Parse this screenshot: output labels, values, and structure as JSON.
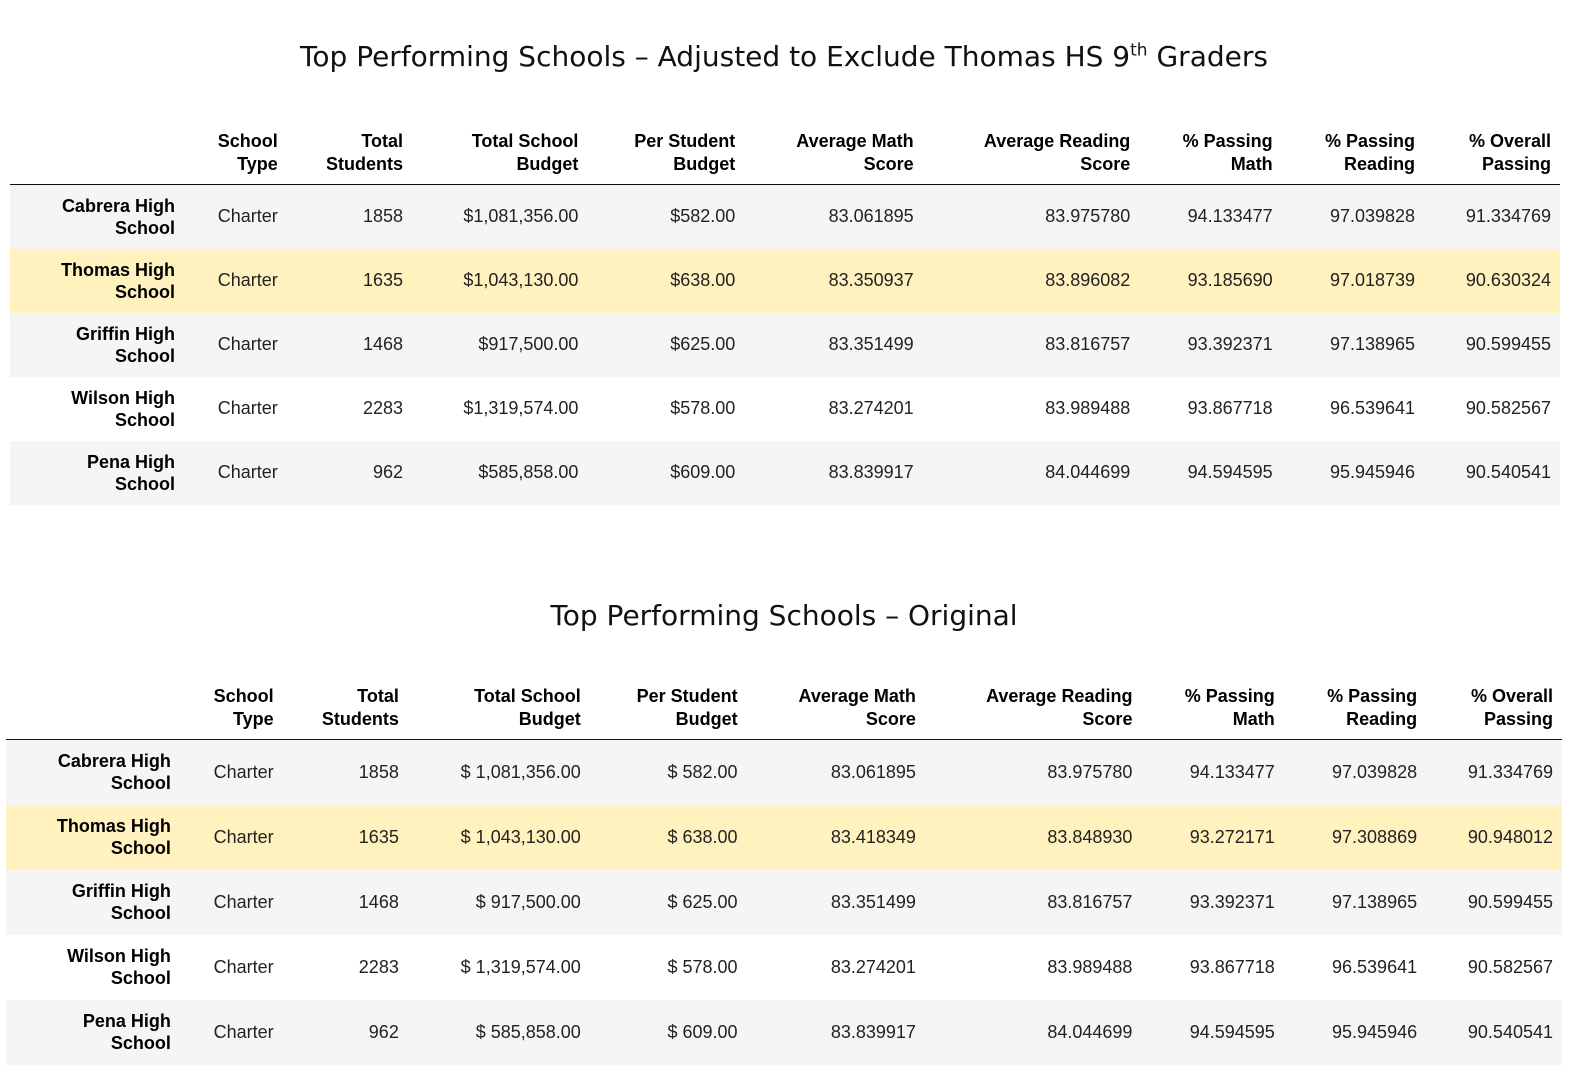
{
  "sections": [
    {
      "title_main": "Top Performing Schools – Adjusted to Exclude Thomas HS 9",
      "title_sup": "th",
      "title_tail": " Graders",
      "columns": [
        {
          "line1": "",
          "line2": ""
        },
        {
          "line1": "School",
          "line2": "Type"
        },
        {
          "line1": "Total",
          "line2": "Students"
        },
        {
          "line1": "Total School",
          "line2": "Budget"
        },
        {
          "line1": "Per Student",
          "line2": "Budget"
        },
        {
          "line1": "Average Math",
          "line2": "Score"
        },
        {
          "line1": "Average Reading",
          "line2": "Score"
        },
        {
          "line1": "% Passing",
          "line2": "Math"
        },
        {
          "line1": "% Passing",
          "line2": "Reading"
        },
        {
          "line1": "% Overall",
          "line2": "Passing"
        }
      ],
      "rows": [
        {
          "name1": "Cabrera High",
          "name2": "School",
          "type": "Charter",
          "students": "1858",
          "total_budget": "$1,081,356.00",
          "per_student": "$582.00",
          "avg_math": "83.061895",
          "avg_reading": "83.975780",
          "pct_math": "94.133477",
          "pct_reading": "97.039828",
          "pct_overall": "91.334769"
        },
        {
          "name1": "Thomas High",
          "name2": "School",
          "type": "Charter",
          "students": "1635",
          "total_budget": "$1,043,130.00",
          "per_student": "$638.00",
          "avg_math": "83.350937",
          "avg_reading": "83.896082",
          "pct_math": "93.185690",
          "pct_reading": "97.018739",
          "pct_overall": "90.630324"
        },
        {
          "name1": "Griffin High",
          "name2": "School",
          "type": "Charter",
          "students": "1468",
          "total_budget": "$917,500.00",
          "per_student": "$625.00",
          "avg_math": "83.351499",
          "avg_reading": "83.816757",
          "pct_math": "93.392371",
          "pct_reading": "97.138965",
          "pct_overall": "90.599455"
        },
        {
          "name1": "Wilson High",
          "name2": "School",
          "type": "Charter",
          "students": "2283",
          "total_budget": "$1,319,574.00",
          "per_student": "$578.00",
          "avg_math": "83.274201",
          "avg_reading": "83.989488",
          "pct_math": "93.867718",
          "pct_reading": "96.539641",
          "pct_overall": "90.582567"
        },
        {
          "name1": "Pena High",
          "name2": "School",
          "type": "Charter",
          "students": "962",
          "total_budget": "$585,858.00",
          "per_student": "$609.00",
          "avg_math": "83.839917",
          "avg_reading": "84.044699",
          "pct_math": "94.594595",
          "pct_reading": "95.945946",
          "pct_overall": "90.540541"
        }
      ]
    },
    {
      "title_main": "Top Performing Schools – Original",
      "title_sup": "",
      "title_tail": "",
      "columns": [
        {
          "line1": "",
          "line2": ""
        },
        {
          "line1": "School",
          "line2": "Type"
        },
        {
          "line1": "Total",
          "line2": "Students"
        },
        {
          "line1": "Total School",
          "line2": "Budget"
        },
        {
          "line1": "Per Student",
          "line2": "Budget"
        },
        {
          "line1": "Average Math",
          "line2": "Score"
        },
        {
          "line1": "Average Reading",
          "line2": "Score"
        },
        {
          "line1": "% Passing",
          "line2": "Math"
        },
        {
          "line1": "% Passing",
          "line2": "Reading"
        },
        {
          "line1": "% Overall",
          "line2": "Passing"
        }
      ],
      "rows": [
        {
          "name1": "Cabrera High",
          "name2": "School",
          "type": "Charter",
          "students": "1858",
          "total_budget": "$ 1,081,356.00",
          "per_student": "$ 582.00",
          "avg_math": "83.061895",
          "avg_reading": "83.975780",
          "pct_math": "94.133477",
          "pct_reading": "97.039828",
          "pct_overall": "91.334769"
        },
        {
          "name1": "Thomas High",
          "name2": "School",
          "type": "Charter",
          "students": "1635",
          "total_budget": "$ 1,043,130.00",
          "per_student": "$ 638.00",
          "avg_math": "83.418349",
          "avg_reading": "83.848930",
          "pct_math": "93.272171",
          "pct_reading": "97.308869",
          "pct_overall": "90.948012"
        },
        {
          "name1": "Griffin High",
          "name2": "School",
          "type": "Charter",
          "students": "1468",
          "total_budget": "$ 917,500.00",
          "per_student": "$ 625.00",
          "avg_math": "83.351499",
          "avg_reading": "83.816757",
          "pct_math": "93.392371",
          "pct_reading": "97.138965",
          "pct_overall": "90.599455"
        },
        {
          "name1": "Wilson High",
          "name2": "School",
          "type": "Charter",
          "students": "2283",
          "total_budget": "$ 1,319,574.00",
          "per_student": "$ 578.00",
          "avg_math": "83.274201",
          "avg_reading": "83.989488",
          "pct_math": "93.867718",
          "pct_reading": "96.539641",
          "pct_overall": "90.582567"
        },
        {
          "name1": "Pena High",
          "name2": "School",
          "type": "Charter",
          "students": "962",
          "total_budget": "$ 585,858.00",
          "per_student": "$ 609.00",
          "avg_math": "83.839917",
          "avg_reading": "84.044699",
          "pct_math": "94.594595",
          "pct_reading": "95.945946",
          "pct_overall": "90.540541"
        }
      ]
    }
  ],
  "highlight_color": "#fff2bf",
  "stripe_color": "#f5f5f5"
}
